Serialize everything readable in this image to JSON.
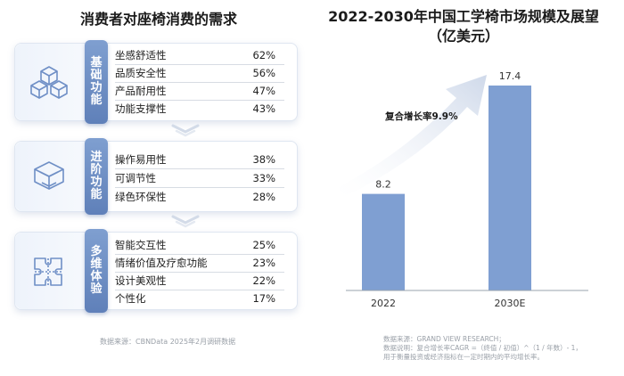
{
  "left": {
    "title": "消费者对座椅消费的需求",
    "groups": [
      {
        "tag_chars": [
          "基",
          "础",
          "功",
          "能"
        ],
        "items": [
          {
            "label": "坐感舒适性",
            "pct": "62%"
          },
          {
            "label": "品质安全性",
            "pct": "56%"
          },
          {
            "label": "产品耐用性",
            "pct": "47%"
          },
          {
            "label": "功能支撑性",
            "pct": "43%"
          }
        ]
      },
      {
        "tag_chars": [
          "进",
          "阶",
          "功",
          "能"
        ],
        "items": [
          {
            "label": "操作易用性",
            "pct": "38%"
          },
          {
            "label": "可调节性",
            "pct": "33%"
          },
          {
            "label": "绿色环保性",
            "pct": "28%"
          }
        ]
      },
      {
        "tag_chars": [
          "多",
          "维",
          "体",
          "验"
        ],
        "items": [
          {
            "label": "智能交互性",
            "pct": "25%"
          },
          {
            "label": "情绪价值及疗愈功能",
            "pct": "23%"
          },
          {
            "label": "设计美观性",
            "pct": "22%"
          },
          {
            "label": "个性化",
            "pct": "17%"
          }
        ]
      }
    ],
    "source": "数据来源：CBNData 2025年2月调研数据"
  },
  "right": {
    "title_line1": "2022-2030年中国工学椅市场规模及展望",
    "title_line2": "（亿美元）",
    "source_line1": "数据来源：GRAND VIEW RESEARCH；",
    "source_line2": "数据说明：复合增长率CAGR =（终值 / 初值）^（1 / 年数）- 1，",
    "source_line3": "用于衡量投资或经济指标在一定时期内的平均增长率。"
  },
  "chart_data": {
    "type": "bar",
    "title": "2022-2030年中国工学椅市场规模及展望（亿美元）",
    "categories": [
      "2022",
      "2030E"
    ],
    "values": [
      8.2,
      17.4
    ],
    "annotation": "复合增长率9.9%",
    "bar_color": "#7f9fd2",
    "ylim": [
      0,
      17.4
    ],
    "grid": false
  }
}
